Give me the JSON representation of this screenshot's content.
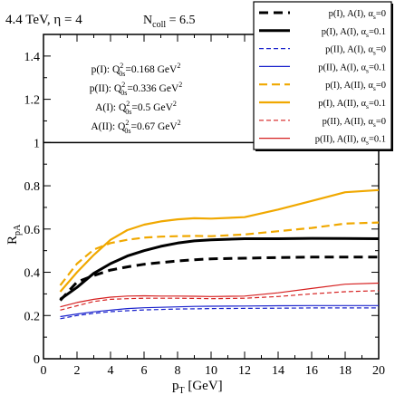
{
  "chart_data": {
    "type": "line",
    "header": {
      "energy_eta": "4.4 TeV, η = 4",
      "ncoll_base": "N",
      "ncoll_sub": "coll",
      "ncoll_value": " = 6.5"
    },
    "xlabel": {
      "base": "p",
      "sub": "T",
      "rest": " [GeV]"
    },
    "ylabel": {
      "base": "R",
      "sub": "pA"
    },
    "xlim": [
      0,
      20
    ],
    "ylim": [
      0,
      1.5
    ],
    "x_ticks": [
      0,
      2,
      4,
      6,
      8,
      10,
      12,
      14,
      16,
      18,
      20
    ],
    "x_tick_labels": [
      "0",
      "2",
      "4",
      "6",
      "8",
      "10",
      "12",
      "14",
      "16",
      "18",
      "20"
    ],
    "y_ticks": [
      0,
      0.2,
      0.4,
      0.6,
      0.8,
      1,
      1.2,
      1.4
    ],
    "y_tick_labels": [
      "0",
      "0.2",
      "0.4",
      "0.6",
      "0.8",
      "1",
      "1.2",
      "1.4"
    ],
    "grid": false,
    "legend_position": "top-right",
    "reference_line_y": 1,
    "annotation": [
      {
        "label": "p(I):",
        "q_base": "Q",
        "q_sup": "2",
        "q_sub": "0s",
        "value": "=0.168 GeV",
        "unit_sup": "2"
      },
      {
        "label": "p(II):",
        "q_base": "Q",
        "q_sup": "2",
        "q_sub": "0s",
        "value": "=0.336 GeV",
        "unit_sup": "2"
      },
      {
        "label": "A(I):",
        "q_base": "Q",
        "q_sup": "2",
        "q_sub": "0s",
        "value": "=0.5 GeV",
        "unit_sup": "2"
      },
      {
        "label": "A(II):",
        "q_base": "Q",
        "q_sup": "2",
        "q_sub": "0s",
        "value": "=0.67 GeV",
        "unit_sup": "2"
      }
    ],
    "series": [
      {
        "name": "p(I), A(I), α",
        "name_sub": "s",
        "name_rest": "=0",
        "color": "#000000",
        "width": 3,
        "dash": "10,6",
        "x": [
          1,
          2,
          3,
          4,
          5,
          6,
          7,
          8,
          9,
          10,
          12,
          14,
          16,
          18,
          20
        ],
        "y": [
          0.27,
          0.355,
          0.385,
          0.41,
          0.425,
          0.437,
          0.445,
          0.452,
          0.458,
          0.462,
          0.465,
          0.468,
          0.47,
          0.47,
          0.47
        ]
      },
      {
        "name": "p(I), A(I), α",
        "name_sub": "s",
        "name_rest": "=0.1",
        "color": "#000000",
        "width": 3,
        "dash": "",
        "x": [
          1,
          2,
          3,
          4,
          5,
          6,
          7,
          8,
          9,
          10,
          12,
          14,
          16,
          18,
          20
        ],
        "y": [
          0.275,
          0.33,
          0.395,
          0.44,
          0.475,
          0.5,
          0.52,
          0.535,
          0.545,
          0.55,
          0.555,
          0.555,
          0.557,
          0.556,
          0.555
        ]
      },
      {
        "name": "p(II), A(I), α",
        "name_sub": "s",
        "name_rest": "=0",
        "color": "#1a22cc",
        "width": 1.2,
        "dash": "5,3",
        "x": [
          1,
          2,
          3,
          4,
          5,
          6,
          7,
          8,
          9,
          10,
          12,
          14,
          16,
          18,
          20
        ],
        "y": [
          0.185,
          0.2,
          0.21,
          0.218,
          0.222,
          0.226,
          0.228,
          0.23,
          0.231,
          0.232,
          0.233,
          0.234,
          0.235,
          0.235,
          0.235
        ]
      },
      {
        "name": "p(II), A(I), α",
        "name_sub": "s",
        "name_rest": "=0.1",
        "color": "#1a22cc",
        "width": 1.2,
        "dash": "",
        "x": [
          1,
          2,
          3,
          4,
          5,
          6,
          7,
          8,
          9,
          10,
          12,
          14,
          16,
          18,
          20
        ],
        "y": [
          0.195,
          0.207,
          0.217,
          0.225,
          0.232,
          0.236,
          0.238,
          0.24,
          0.242,
          0.243,
          0.244,
          0.245,
          0.246,
          0.246,
          0.246
        ]
      },
      {
        "name": "p(I), A(II), α",
        "name_sub": "s",
        "name_rest": "=0",
        "color": "#f0a800",
        "width": 2.2,
        "dash": "9,5",
        "x": [
          1,
          2,
          3,
          4,
          5,
          6,
          7,
          8,
          9,
          10,
          12,
          14,
          16,
          18,
          20
        ],
        "y": [
          0.34,
          0.44,
          0.505,
          0.535,
          0.55,
          0.56,
          0.565,
          0.567,
          0.568,
          0.567,
          0.575,
          0.59,
          0.605,
          0.625,
          0.63
        ]
      },
      {
        "name": "p(I), A(II), α",
        "name_sub": "s",
        "name_rest": "=0.1",
        "color": "#f0a800",
        "width": 2.2,
        "dash": "",
        "x": [
          1,
          2,
          3,
          4,
          5,
          6,
          7,
          8,
          9,
          10,
          12,
          14,
          16,
          18,
          20
        ],
        "y": [
          0.31,
          0.4,
          0.48,
          0.55,
          0.595,
          0.62,
          0.635,
          0.645,
          0.65,
          0.648,
          0.655,
          0.69,
          0.73,
          0.77,
          0.78
        ]
      },
      {
        "name": "p(II), A(II), α",
        "name_sub": "s",
        "name_rest": "=0",
        "color": "#d62020",
        "width": 1.2,
        "dash": "5,3",
        "x": [
          1,
          2,
          3,
          4,
          5,
          6,
          7,
          8,
          9,
          10,
          12,
          14,
          16,
          18,
          20
        ],
        "y": [
          0.225,
          0.245,
          0.265,
          0.275,
          0.278,
          0.28,
          0.28,
          0.28,
          0.279,
          0.278,
          0.28,
          0.288,
          0.3,
          0.31,
          0.315
        ]
      },
      {
        "name": "p(II), A(II), α",
        "name_sub": "s",
        "name_rest": "=0.1",
        "color": "#d62020",
        "width": 1.2,
        "dash": "",
        "x": [
          1,
          2,
          3,
          4,
          5,
          6,
          7,
          8,
          9,
          10,
          12,
          14,
          16,
          18,
          20
        ],
        "y": [
          0.24,
          0.26,
          0.275,
          0.285,
          0.29,
          0.291,
          0.29,
          0.29,
          0.289,
          0.288,
          0.29,
          0.305,
          0.325,
          0.345,
          0.35
        ]
      }
    ]
  }
}
